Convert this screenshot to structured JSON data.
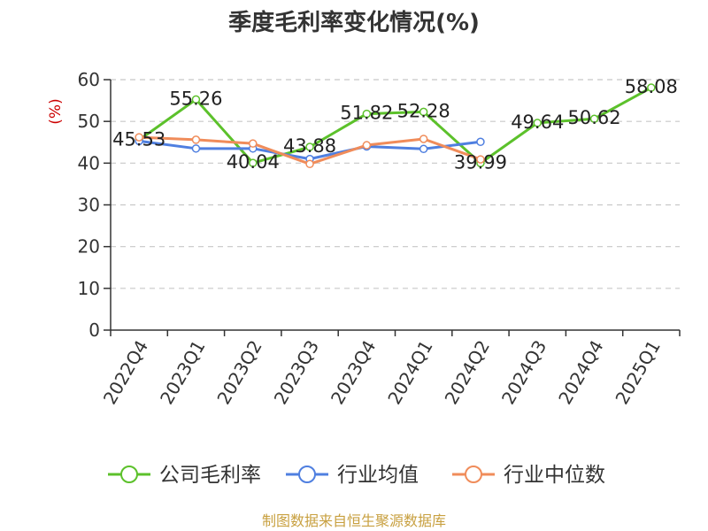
{
  "chart_data": {
    "type": "line",
    "title": "季度毛利率变化情况(%)",
    "ylabel": "(%)",
    "xlabel": "",
    "ylim": [
      0,
      60
    ],
    "yticks": [
      0,
      10,
      20,
      30,
      40,
      50,
      60
    ],
    "grid": true,
    "legend_position": "bottom",
    "categories": [
      "2022Q4",
      "2023Q1",
      "2023Q2",
      "2023Q3",
      "2023Q4",
      "2024Q1",
      "2024Q2",
      "2024Q3",
      "2024Q4",
      "2025Q1"
    ],
    "series": [
      {
        "name": "公司毛利率",
        "color": "#5cc12b",
        "values": [
          45.53,
          55.26,
          40.04,
          43.88,
          51.82,
          52.28,
          39.99,
          49.64,
          50.62,
          58.08
        ],
        "labels": [
          "45.53",
          "55.26",
          "40.04",
          "43.88",
          "51.82",
          "52.28",
          "39.99",
          "49.64",
          "50.62",
          "58.08"
        ]
      },
      {
        "name": "行业均值",
        "color": "#4f7fe0",
        "values": [
          45.3,
          43.5,
          43.5,
          41.0,
          44.0,
          43.4,
          45.1,
          null,
          null,
          null
        ]
      },
      {
        "name": "行业中位数",
        "color": "#f08c5a",
        "values": [
          46.2,
          45.6,
          44.7,
          39.8,
          44.3,
          45.8,
          40.9,
          null,
          null,
          null
        ]
      }
    ]
  },
  "source_text": "制图数据来自恒生聚源数据库",
  "colors": {
    "title": "#333333",
    "ylabel": "#cc0000",
    "axis": "#333333",
    "grid": "#c8c8c8",
    "source": "#c8a040"
  }
}
